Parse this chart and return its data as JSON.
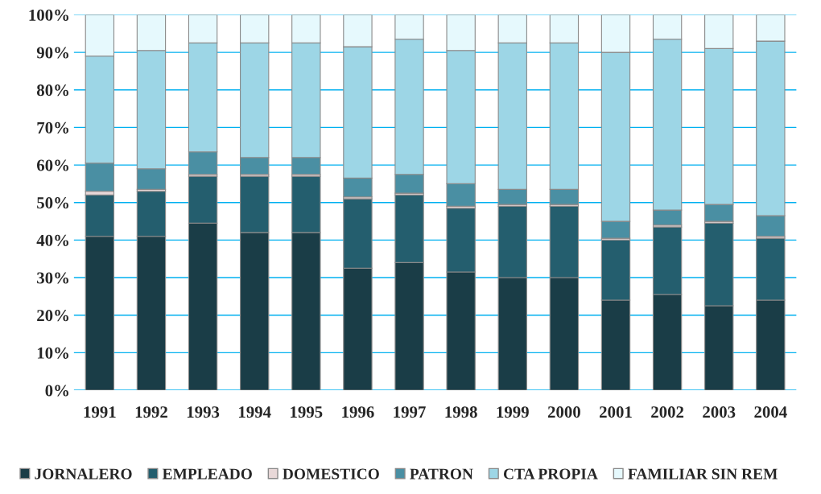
{
  "chart_data": {
    "type": "bar",
    "stacked": true,
    "categories": [
      "1991",
      "1992",
      "1993",
      "1994",
      "1995",
      "1996",
      "1997",
      "1998",
      "1999",
      "2000",
      "2001",
      "2002",
      "2003",
      "2004"
    ],
    "series": [
      {
        "name": "JORNALERO",
        "color": "#1a3d47",
        "values": [
          41,
          41,
          44.5,
          42,
          42,
          32.5,
          34,
          31.5,
          30,
          30,
          24,
          25.5,
          22.5,
          24
        ]
      },
      {
        "name": "EMPLEADO",
        "color": "#245e6e",
        "values": [
          11,
          12,
          12.5,
          15,
          15,
          18.5,
          18,
          17,
          19,
          19,
          16,
          18,
          22,
          16.5
        ]
      },
      {
        "name": "DOMESTICO",
        "color": "#e8d8d8",
        "values": [
          1,
          0.5,
          0.5,
          0.5,
          0.5,
          0.5,
          0.5,
          0.5,
          0.5,
          0.5,
          0.5,
          0.5,
          0.5,
          0.5
        ]
      },
      {
        "name": "PATRON",
        "color": "#4a8fa3",
        "values": [
          7.5,
          5.5,
          6,
          4.5,
          4.5,
          5,
          5,
          6,
          4,
          4,
          4.5,
          4,
          4.5,
          5.5
        ]
      },
      {
        "name": "CTA PROPIA",
        "color": "#9dd6e6",
        "values": [
          28.5,
          31.5,
          29,
          30.5,
          30.5,
          35,
          36,
          35.5,
          39,
          39,
          45,
          45.5,
          41.5,
          46.5
        ]
      },
      {
        "name": "FAMILIAR SIN REM",
        "color": "#e6f9fd",
        "values": [
          11,
          9.5,
          7.5,
          7.5,
          7.5,
          8.5,
          6.5,
          9.5,
          7.5,
          7.5,
          10,
          6.5,
          9,
          7
        ]
      }
    ],
    "ylim": [
      0,
      100
    ],
    "yticks": [
      {
        "value": 0,
        "label": "0%"
      },
      {
        "value": 10,
        "label": "10%"
      },
      {
        "value": 20,
        "label": "20%"
      },
      {
        "value": 30,
        "label": "30%"
      },
      {
        "value": 40,
        "label": "40%"
      },
      {
        "value": 50,
        "label": "50%"
      },
      {
        "value": 60,
        "label": "60%"
      },
      {
        "value": 70,
        "label": "70%"
      },
      {
        "value": 80,
        "label": "80%"
      },
      {
        "value": 90,
        "label": "90%"
      },
      {
        "value": 100,
        "label": "100%"
      }
    ],
    "grid": "y",
    "legend": "bottom"
  }
}
